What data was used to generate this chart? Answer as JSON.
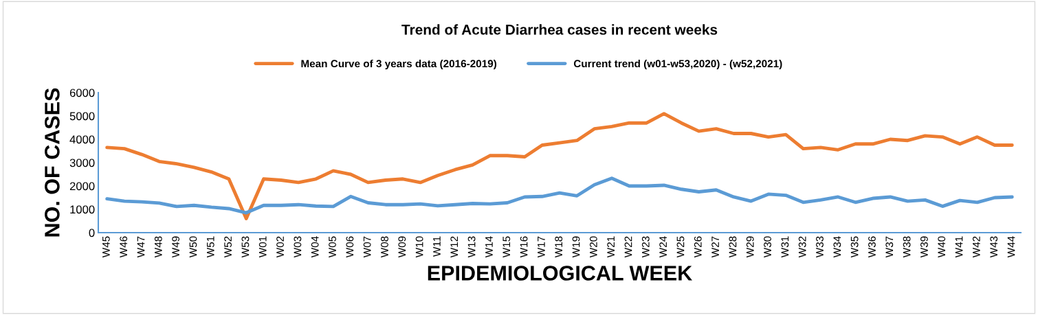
{
  "chart_data": {
    "type": "line",
    "title": "Trend of Acute Diarrhea cases in recent weeks",
    "xlabel": "EPIDEMIOLOGICAL WEEK",
    "ylabel": "NO. OF CASES",
    "categories": [
      "W45",
      "W46",
      "W47",
      "W48",
      "W49",
      "W50",
      "W51",
      "W52",
      "W53",
      "W01",
      "W02",
      "W03",
      "W04",
      "W05",
      "W06",
      "W07",
      "W08",
      "W09",
      "W10",
      "W11",
      "W12",
      "W13",
      "W14",
      "W15",
      "W16",
      "W17",
      "W18",
      "W19",
      "W20",
      "W21",
      "W22",
      "W23",
      "W24",
      "W25",
      "W26",
      "W27",
      "W28",
      "W29",
      "W30",
      "W31",
      "W32",
      "W33",
      "W34",
      "W35",
      "W36",
      "W37",
      "W38",
      "W39",
      "W40",
      "W41",
      "W42",
      "W43",
      "W44"
    ],
    "series": [
      {
        "name": "Mean Curve of 3 years data (2016-2019)",
        "color": "#ed7d31",
        "values": [
          3650,
          3600,
          3350,
          3050,
          2950,
          2800,
          2600,
          2300,
          600,
          2300,
          2250,
          2150,
          2300,
          2650,
          2500,
          2150,
          2250,
          2300,
          2150,
          2450,
          2700,
          2900,
          3300,
          3300,
          3250,
          3750,
          3850,
          3950,
          4450,
          4550,
          4700,
          4700,
          5100,
          4700,
          4350,
          4450,
          4250,
          4250,
          4100,
          4200,
          3600,
          3650,
          3550,
          3800,
          3800,
          4000,
          3950,
          4150,
          4100,
          3800,
          4100,
          3750,
          3750
        ]
      },
      {
        "name": "Current trend (w01-w53,2020) - (w52,2021)",
        "color": "#5b9bd5",
        "values": [
          1450,
          1350,
          1320,
          1270,
          1120,
          1170,
          1090,
          1030,
          850,
          1170,
          1170,
          1200,
          1140,
          1120,
          1550,
          1280,
          1200,
          1200,
          1230,
          1150,
          1200,
          1250,
          1230,
          1280,
          1530,
          1550,
          1700,
          1580,
          2050,
          2330,
          2000,
          2000,
          2030,
          1860,
          1750,
          1830,
          1530,
          1350,
          1650,
          1600,
          1300,
          1400,
          1530,
          1300,
          1470,
          1530,
          1350,
          1400,
          1130,
          1380,
          1300,
          1500,
          1530
        ]
      }
    ],
    "ylim": [
      0,
      6000
    ],
    "yticks": [
      0,
      1000,
      2000,
      3000,
      4000,
      5000,
      6000
    ],
    "grid": false,
    "legend": "top",
    "marker": "none",
    "line_style": "solid"
  }
}
